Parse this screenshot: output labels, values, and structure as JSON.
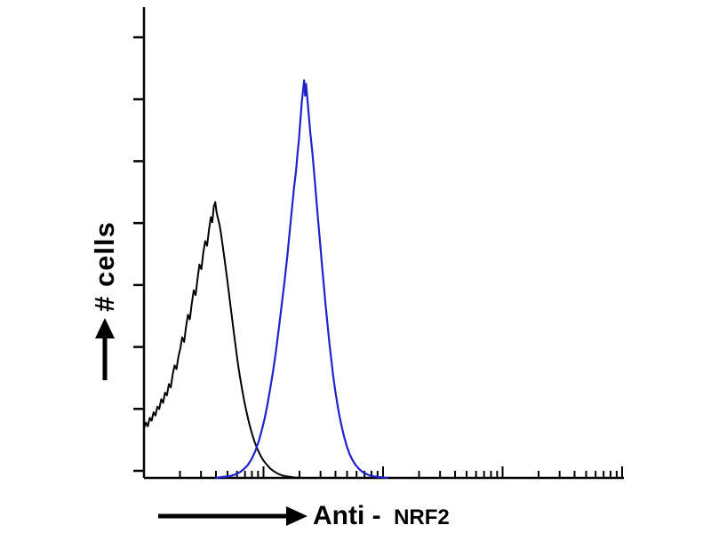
{
  "labels": {
    "y": "# cells",
    "x_main": "Anti -",
    "x_target": "NRF2"
  },
  "colors": {
    "background": "#ffffff",
    "axis": "#000000",
    "black_curve": "#000000",
    "blue_curve": "#2222cc"
  },
  "icons": {
    "y_axis_arrow": "up-arrow",
    "x_axis_arrow": "right-arrow"
  },
  "chart_data": {
    "type": "line",
    "subtype": "flow-cytometry-histogram",
    "title": "",
    "xlabel": "Anti - NRF2",
    "ylabel": "# cells",
    "x_axis": {
      "scale": "log",
      "decades": 4,
      "tick_labels": "none"
    },
    "y_axis": {
      "tick_count": 8,
      "tick_labels": "none"
    },
    "xlim": [
      0,
      1
    ],
    "ylim": [
      0,
      1
    ],
    "legend": "none",
    "grid": false,
    "series": [
      {
        "name": "black-curve",
        "color": "#000000",
        "peak_x": 0.149,
        "peak_y": 0.588,
        "points": [
          [
            0.0,
            0.105
          ],
          [
            0.004,
            0.118
          ],
          [
            0.008,
            0.11
          ],
          [
            0.012,
            0.128
          ],
          [
            0.016,
            0.122
          ],
          [
            0.02,
            0.14
          ],
          [
            0.024,
            0.133
          ],
          [
            0.028,
            0.152
          ],
          [
            0.032,
            0.147
          ],
          [
            0.036,
            0.168
          ],
          [
            0.04,
            0.16
          ],
          [
            0.044,
            0.182
          ],
          [
            0.048,
            0.176
          ],
          [
            0.052,
            0.2
          ],
          [
            0.056,
            0.193
          ],
          [
            0.06,
            0.22
          ],
          [
            0.064,
            0.24
          ],
          [
            0.068,
            0.232
          ],
          [
            0.072,
            0.258
          ],
          [
            0.076,
            0.276
          ],
          [
            0.08,
            0.3
          ],
          [
            0.084,
            0.29
          ],
          [
            0.088,
            0.322
          ],
          [
            0.092,
            0.348
          ],
          [
            0.096,
            0.338
          ],
          [
            0.1,
            0.372
          ],
          [
            0.104,
            0.4
          ],
          [
            0.108,
            0.39
          ],
          [
            0.112,
            0.425
          ],
          [
            0.116,
            0.455
          ],
          [
            0.12,
            0.445
          ],
          [
            0.124,
            0.48
          ],
          [
            0.128,
            0.505
          ],
          [
            0.132,
            0.495
          ],
          [
            0.136,
            0.53
          ],
          [
            0.14,
            0.556
          ],
          [
            0.143,
            0.545
          ],
          [
            0.146,
            0.578
          ],
          [
            0.149,
            0.588
          ],
          [
            0.152,
            0.565
          ],
          [
            0.155,
            0.552
          ],
          [
            0.158,
            0.54
          ],
          [
            0.161,
            0.522
          ],
          [
            0.164,
            0.5
          ],
          [
            0.168,
            0.47
          ],
          [
            0.172,
            0.44
          ],
          [
            0.176,
            0.408
          ],
          [
            0.18,
            0.375
          ],
          [
            0.184,
            0.342
          ],
          [
            0.188,
            0.31
          ],
          [
            0.192,
            0.278
          ],
          [
            0.196,
            0.248
          ],
          [
            0.2,
            0.22
          ],
          [
            0.205,
            0.19
          ],
          [
            0.21,
            0.162
          ],
          [
            0.215,
            0.138
          ],
          [
            0.22,
            0.116
          ],
          [
            0.226,
            0.094
          ],
          [
            0.232,
            0.075
          ],
          [
            0.238,
            0.06
          ],
          [
            0.244,
            0.047
          ],
          [
            0.25,
            0.037
          ],
          [
            0.257,
            0.028
          ],
          [
            0.264,
            0.02
          ],
          [
            0.272,
            0.014
          ],
          [
            0.28,
            0.009
          ],
          [
            0.29,
            0.005
          ],
          [
            0.3,
            0.003
          ],
          [
            0.315,
            0.001
          ],
          [
            0.33,
            0.0
          ]
        ]
      },
      {
        "name": "blue-curve",
        "color": "#2222cc",
        "peak_x": 0.335,
        "peak_y": 0.848,
        "points": [
          [
            0.15,
            0.0
          ],
          [
            0.165,
            0.002
          ],
          [
            0.18,
            0.004
          ],
          [
            0.19,
            0.007
          ],
          [
            0.2,
            0.012
          ],
          [
            0.208,
            0.018
          ],
          [
            0.216,
            0.026
          ],
          [
            0.224,
            0.038
          ],
          [
            0.232,
            0.055
          ],
          [
            0.24,
            0.078
          ],
          [
            0.246,
            0.1
          ],
          [
            0.252,
            0.125
          ],
          [
            0.258,
            0.155
          ],
          [
            0.264,
            0.19
          ],
          [
            0.27,
            0.228
          ],
          [
            0.276,
            0.27
          ],
          [
            0.282,
            0.318
          ],
          [
            0.288,
            0.368
          ],
          [
            0.294,
            0.42
          ],
          [
            0.3,
            0.475
          ],
          [
            0.305,
            0.528
          ],
          [
            0.31,
            0.58
          ],
          [
            0.314,
            0.62
          ],
          [
            0.318,
            0.655
          ],
          [
            0.321,
            0.69
          ],
          [
            0.324,
            0.72
          ],
          [
            0.327,
            0.76
          ],
          [
            0.33,
            0.8
          ],
          [
            0.333,
            0.83
          ],
          [
            0.335,
            0.848
          ],
          [
            0.337,
            0.815
          ],
          [
            0.339,
            0.84
          ],
          [
            0.342,
            0.805
          ],
          [
            0.345,
            0.77
          ],
          [
            0.348,
            0.735
          ],
          [
            0.352,
            0.695
          ],
          [
            0.356,
            0.65
          ],
          [
            0.36,
            0.6
          ],
          [
            0.364,
            0.552
          ],
          [
            0.368,
            0.505
          ],
          [
            0.372,
            0.458
          ],
          [
            0.376,
            0.412
          ],
          [
            0.38,
            0.368
          ],
          [
            0.384,
            0.326
          ],
          [
            0.388,
            0.286
          ],
          [
            0.392,
            0.25
          ],
          [
            0.396,
            0.216
          ],
          [
            0.4,
            0.186
          ],
          [
            0.406,
            0.148
          ],
          [
            0.412,
            0.116
          ],
          [
            0.418,
            0.09
          ],
          [
            0.424,
            0.068
          ],
          [
            0.43,
            0.051
          ],
          [
            0.436,
            0.038
          ],
          [
            0.443,
            0.027
          ],
          [
            0.45,
            0.019
          ],
          [
            0.458,
            0.012
          ],
          [
            0.466,
            0.008
          ],
          [
            0.475,
            0.004
          ],
          [
            0.49,
            0.002
          ],
          [
            0.51,
            0.0
          ]
        ]
      }
    ]
  }
}
